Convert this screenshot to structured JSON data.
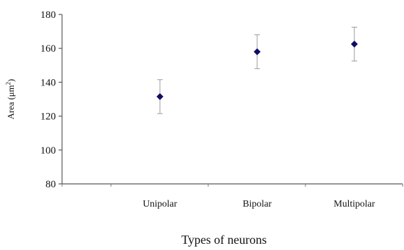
{
  "chart_data": {
    "type": "scatter",
    "title": "",
    "xlabel": "Types of neurons",
    "ylabel_main": "Area (μm",
    "ylabel_sup": "2",
    "ylabel_close": ")",
    "categories": [
      "Unipolar",
      "Bipolar",
      "Multipolar"
    ],
    "y_ticks": [
      "80",
      "100",
      "120",
      "140",
      "160",
      "180"
    ],
    "ylim": [
      80,
      180
    ],
    "grid": false,
    "legend": "none",
    "series": [
      {
        "values": [
          131.5,
          158,
          162.5
        ],
        "errors": [
          10,
          10,
          10
        ],
        "marker": "diamond",
        "color": "#0d0d66",
        "error_color": "#9a9a9a"
      }
    ]
  }
}
